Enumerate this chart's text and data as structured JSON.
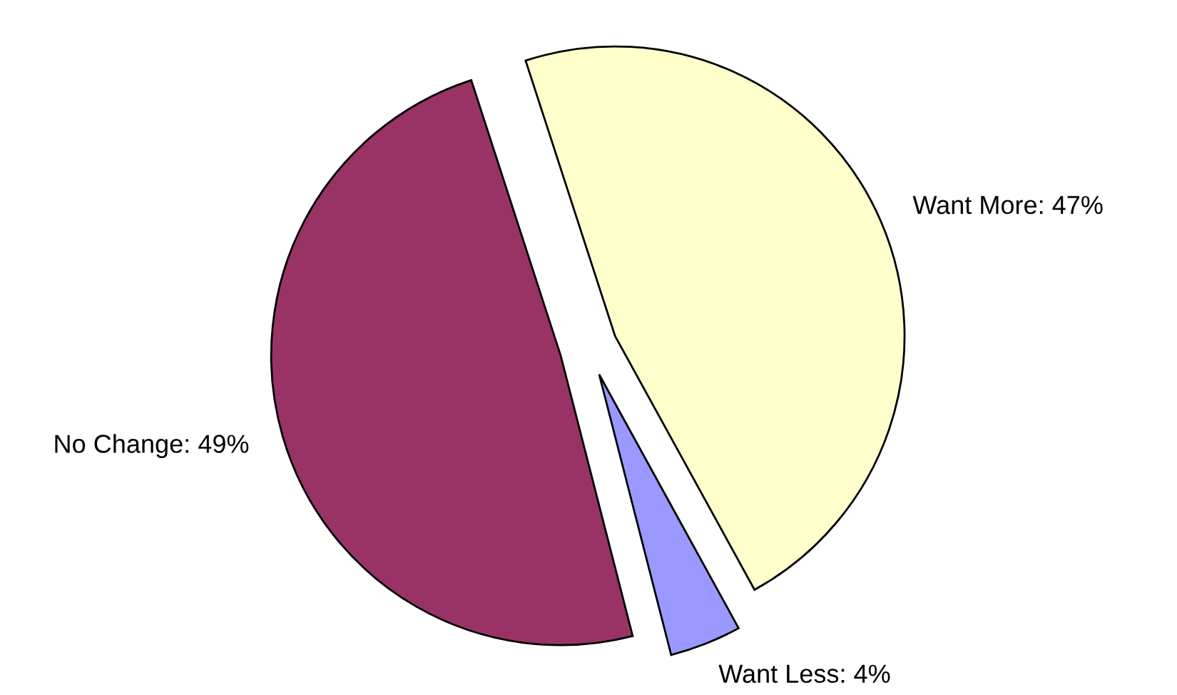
{
  "chart_data": {
    "type": "pie",
    "categories": [
      "Want More: 47%",
      "Want Less: 4%",
      "No Change: 49%"
    ],
    "values": [
      47,
      4,
      49
    ],
    "colors": [
      "#ffffcc",
      "#9999ff",
      "#993366"
    ],
    "legend": false
  }
}
